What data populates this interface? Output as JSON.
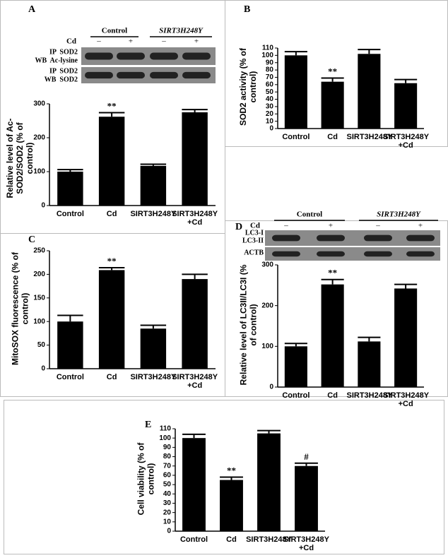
{
  "chart_data": [
    {
      "type": "bar",
      "label": "A",
      "ylabel": "Relative level of Ac-SOD2/SOD2 (% of control)",
      "categories": [
        "Control",
        "Cd",
        "SIRT3H248Y",
        "SIRT3H248Y +Cd"
      ],
      "values": [
        100,
        262,
        117,
        275
      ],
      "errors": [
        6,
        12,
        5,
        8
      ],
      "annotations": [
        null,
        "**",
        null,
        null
      ],
      "color": "#000000",
      "ylim": [
        0,
        300
      ],
      "yticks": [
        0,
        100,
        200,
        300
      ],
      "blot": {
        "groups": [
          "Control",
          "SIRT3H248Y"
        ],
        "treatment": "Cd",
        "signs": [
          "–",
          "+",
          "–",
          "+"
        ],
        "rows": [
          "IP  SOD2",
          "WB  Ac-lysine",
          "IP  SOD2",
          "WB  SOD2"
        ]
      }
    },
    {
      "type": "bar",
      "label": "B",
      "ylabel": "SOD2 activity (% of control)",
      "categories": [
        "Control",
        "Cd",
        "SIRT3H248Y",
        "SIRT3H248Y +Cd"
      ],
      "values": [
        100,
        64,
        102,
        62
      ],
      "errors": [
        5,
        5,
        6,
        5
      ],
      "annotations": [
        null,
        "**",
        null,
        null
      ],
      "color": "#000000",
      "ylim": [
        0,
        110
      ],
      "yticks": [
        0,
        10,
        20,
        30,
        40,
        50,
        60,
        70,
        80,
        90,
        100,
        110
      ]
    },
    {
      "type": "bar",
      "label": "C",
      "ylabel": "MitoSOX fluorescence (% of control)",
      "categories": [
        "Control",
        "Cd",
        "SIRT3H248Y",
        "SIRT3H248Y +Cd"
      ],
      "values": [
        100,
        209,
        85,
        190
      ],
      "errors": [
        13,
        5,
        7,
        10
      ],
      "annotations": [
        null,
        "**",
        null,
        null
      ],
      "color": "#000000",
      "ylim": [
        0,
        250
      ],
      "yticks": [
        0,
        50,
        100,
        150,
        200,
        250
      ]
    },
    {
      "type": "bar",
      "label": "D",
      "ylabel": "Relative level of LC3II/LC3I (% of control)",
      "categories": [
        "Control",
        "Cd",
        "SIRT3H248Y",
        "SIRT3H248Y +Cd"
      ],
      "values": [
        100,
        252,
        112,
        242
      ],
      "errors": [
        7,
        12,
        10,
        10
      ],
      "annotations": [
        null,
        "**",
        null,
        null
      ],
      "color": "#000000",
      "ylim": [
        0,
        300
      ],
      "yticks": [
        0,
        100,
        200,
        300
      ],
      "blot": {
        "groups": [
          "Control",
          "SIRT3H248Y"
        ],
        "treatment": "Cd",
        "signs": [
          "–",
          "+",
          "–",
          "+"
        ],
        "rows": [
          "LC3-I",
          "LC3-II",
          "ACTB"
        ]
      }
    },
    {
      "type": "bar",
      "label": "E",
      "ylabel": "Cell viability (% of control)",
      "categories": [
        "Control",
        "Cd",
        "SIRT3H248Y",
        "SIRT3H248Y +Cd"
      ],
      "values": [
        100,
        55,
        105,
        70
      ],
      "errors": [
        4,
        3,
        3,
        3
      ],
      "annotations": [
        null,
        "**",
        null,
        "#"
      ],
      "color": "#000000",
      "ylim": [
        0,
        110
      ],
      "yticks": [
        0,
        10,
        20,
        30,
        40,
        50,
        60,
        70,
        80,
        90,
        100,
        110
      ]
    }
  ]
}
